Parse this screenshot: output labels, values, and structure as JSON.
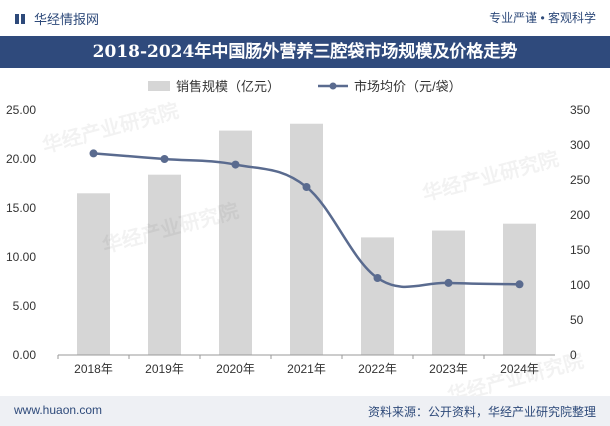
{
  "header": {
    "brand": "华经情报网",
    "tagline": "专业严谨 • 客观科学"
  },
  "title": "2018-2024年中国肠外营养三腔袋市场规模及价格走势",
  "footer": {
    "website": "www.huaon.com",
    "source": "资料来源：公开资料，华经产业研究院整理"
  },
  "watermark": "华经产业研究院",
  "colors": {
    "title_bg": "#2f4a7c",
    "bar": "#d6d6d6",
    "line": "#5a6b8f",
    "brand": "#2e4a7a"
  },
  "chart_data": {
    "type": "bar",
    "categories": [
      "2018年",
      "2019年",
      "2020年",
      "2021年",
      "2022年",
      "2023年",
      "2024年"
    ],
    "series": [
      {
        "name": "销售规模（亿元）",
        "type": "bar",
        "axis": "left",
        "values": [
          16.5,
          18.4,
          22.9,
          23.6,
          12.0,
          12.7,
          13.4
        ]
      },
      {
        "name": "市场均价（元/袋）",
        "type": "line",
        "axis": "right",
        "values": [
          288,
          280,
          272,
          240,
          110,
          103,
          101
        ]
      }
    ],
    "y_left": {
      "min": 0,
      "max": 25,
      "ticks": [
        "0.00",
        "5.00",
        "10.00",
        "15.00",
        "20.00",
        "25.00"
      ]
    },
    "y_right": {
      "min": 0,
      "max": 350,
      "ticks": [
        "0",
        "50",
        "100",
        "150",
        "200",
        "250",
        "300",
        "350"
      ]
    },
    "grid": false,
    "legend_position": "top-center"
  }
}
